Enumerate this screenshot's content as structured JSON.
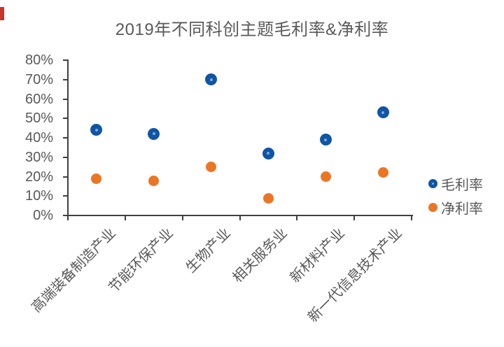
{
  "artifacts": {
    "red_marker_color": "#c9352c"
  },
  "chart_data": {
    "type": "scatter",
    "title": "2019年不同科创主题毛利率&净利率",
    "categories": [
      "高端装备制造产业",
      "节能环保产业",
      "生物产业",
      "相关服务业",
      "新材料产业",
      "新一代信息技术产业"
    ],
    "series": [
      {
        "name": "毛利率",
        "color": "#0F55A4",
        "highlight": "#7FA9DD",
        "values": [
          44,
          42,
          70,
          32,
          39,
          53
        ]
      },
      {
        "name": "净利率",
        "color": "#EC7524",
        "highlight": "",
        "values": [
          19,
          18,
          25,
          9,
          20,
          22
        ]
      }
    ],
    "ylim": [
      0,
      80
    ],
    "ytick_step": 10,
    "ytick_suffix": "%",
    "xlabel": "",
    "ylabel": "",
    "grid": false,
    "legend_position": "right",
    "axis_color": "#404040",
    "text_color": "#595959"
  }
}
